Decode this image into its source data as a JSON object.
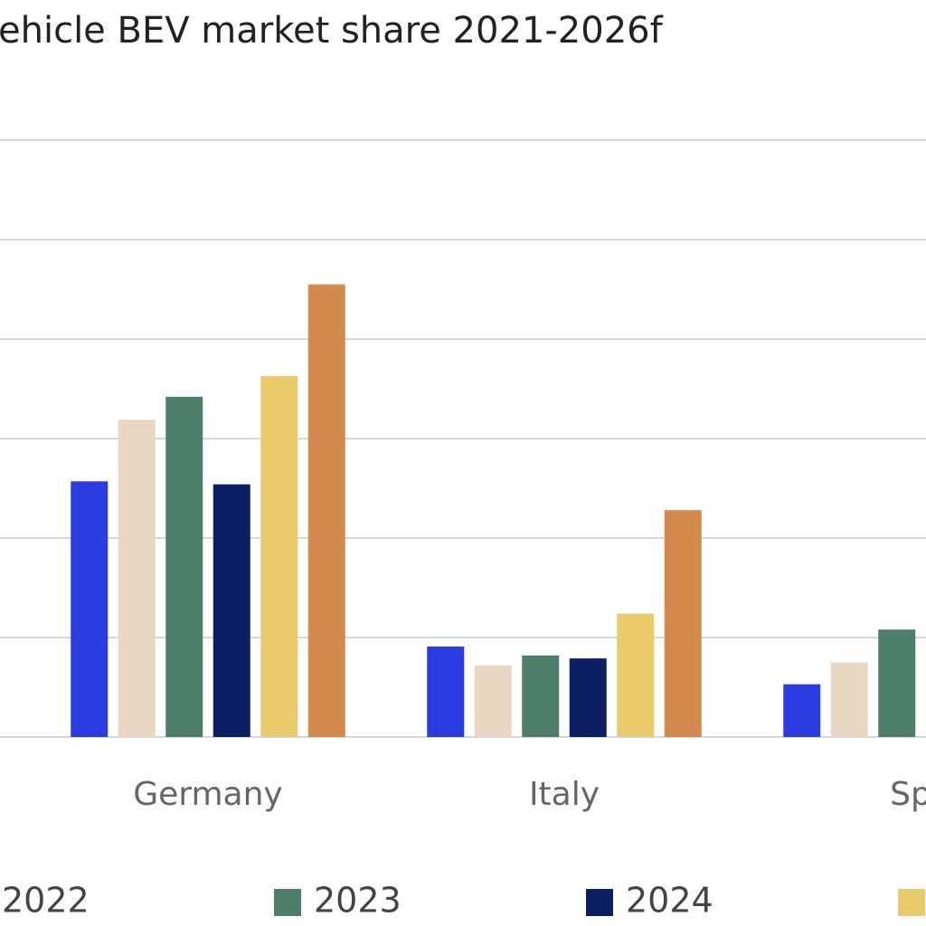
{
  "chart_data": {
    "type": "bar",
    "title": "ehicle BEV market share 2021-2026f",
    "categories": [
      "Germany",
      "Italy",
      "Spa"
    ],
    "series": [
      {
        "name": null,
        "color": "#2b3de0",
        "values": [
          2.57,
          0.91,
          0.53
        ]
      },
      {
        "name": "2022",
        "color": "#e8d8c3",
        "values": [
          3.19,
          0.72,
          0.75
        ]
      },
      {
        "name": "2023",
        "color": "#4e7f6a",
        "values": [
          3.42,
          0.82,
          1.08
        ]
      },
      {
        "name": "2024",
        "color": "#0c1f63",
        "values": [
          2.54,
          0.79,
          null
        ]
      },
      {
        "name": null,
        "color": "#e9cb6c",
        "values": [
          3.63,
          1.24,
          null
        ]
      },
      {
        "name": null,
        "color": "#d4894d",
        "values": [
          4.55,
          2.28,
          null
        ]
      }
    ],
    "ylim": [
      0,
      6
    ],
    "yticks": [
      0,
      1,
      2,
      3,
      4,
      5,
      6
    ],
    "grid": true
  }
}
